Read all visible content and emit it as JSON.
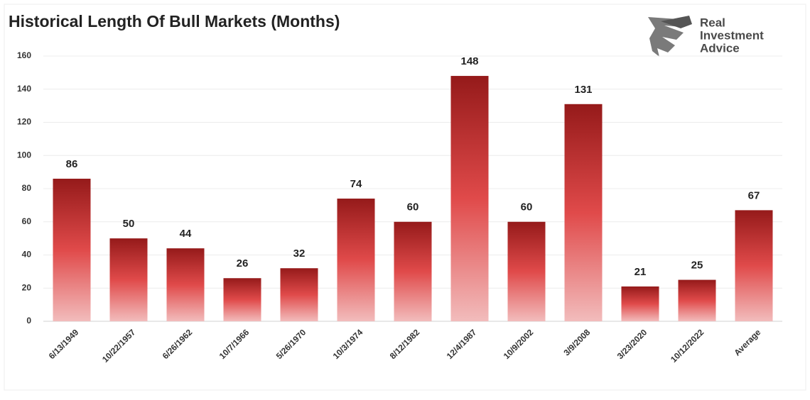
{
  "chart_data": {
    "type": "bar",
    "title": "Historical Length Of Bull Markets (Months)",
    "categories": [
      "6/13/1949",
      "10/22/1957",
      "6/26/1962",
      "10/7/1966",
      "5/26/1970",
      "10/3/1974",
      "8/12/1982",
      "12/4/1987",
      "10/9/2002",
      "3/9/2008",
      "3/23/2020",
      "10/12/2022",
      "Average"
    ],
    "values": [
      86,
      50,
      44,
      26,
      32,
      74,
      60,
      148,
      60,
      131,
      21,
      25,
      67
    ],
    "color": "#c62828",
    "ylim": [
      0,
      160
    ],
    "yticks": [
      0,
      20,
      40,
      60,
      80,
      100,
      120,
      140,
      160
    ],
    "grid": true
  },
  "brand": {
    "lines": [
      "Real",
      "Investment",
      "Advice"
    ]
  }
}
